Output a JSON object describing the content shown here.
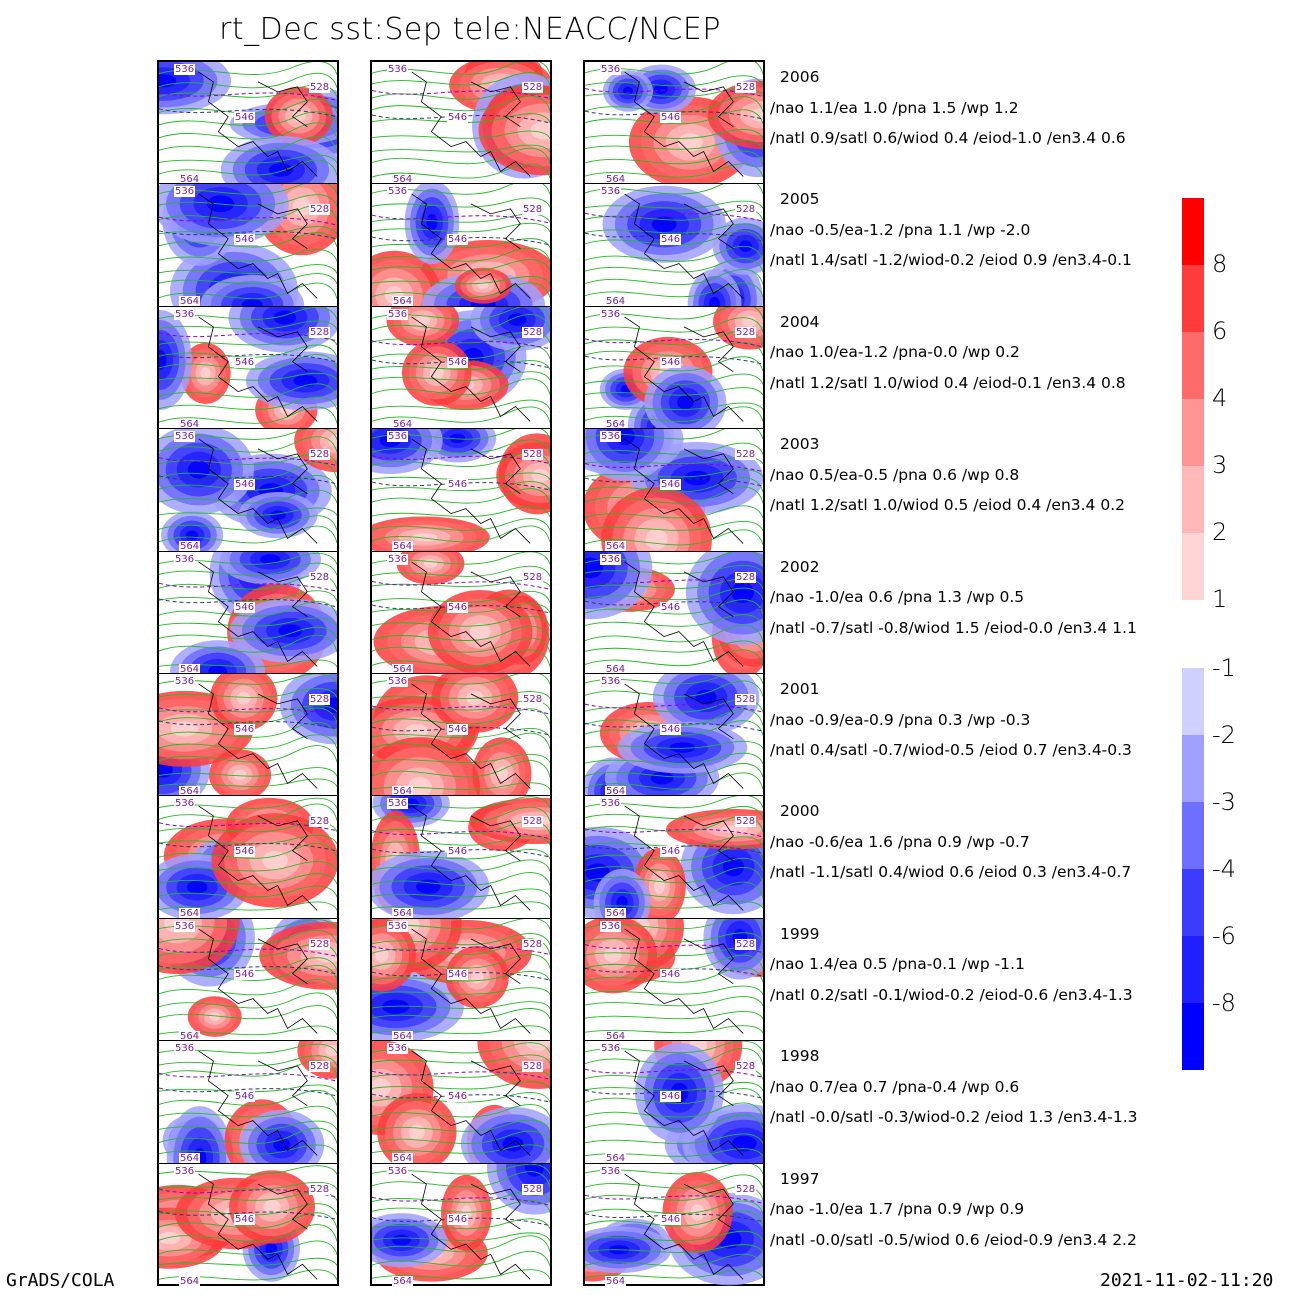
{
  "title": "rt_Dec  sst:Sep  tele:NEACC/NCEP",
  "footer": {
    "left": "GrADS/COLA",
    "right": "2021-11-02-11:20"
  },
  "legend_positive": [
    "8",
    "6",
    "4",
    "3",
    "2",
    "1"
  ],
  "legend_negative": [
    "-1",
    "-2",
    "-3",
    "-4",
    "-6",
    "-8"
  ],
  "colors": {
    "pos": [
      "#ff0000",
      "#ff3c3c",
      "#ff6a6a",
      "#ff9494",
      "#ffb8b8",
      "#ffd4d4"
    ],
    "neg": [
      "#d0d0ff",
      "#a0a0ff",
      "#6e6eff",
      "#3c3cff",
      "#2020ff",
      "#0000ff"
    ],
    "contour_green": "#22bb22",
    "contour_purple": "#8800cc",
    "contour_navy": "#2b3a6e"
  },
  "rows": [
    {
      "year": "2006",
      "line1": "/nao  1.1/ea 1.0 /pna 1.5 /wp  1.2",
      "line2": "/natl  0.9/satl  0.6/wiod 0.4 /eiod-1.0 /en3.4 0.6",
      "labels": [
        "536",
        "546",
        "528",
        "564"
      ]
    },
    {
      "year": "2005",
      "line1": "/nao -0.5/ea-1.2 /pna 1.1 /wp -2.0",
      "line2": "/natl  1.4/satl -1.2/wiod-0.2 /eiod 0.9 /en3.4-0.1",
      "labels": [
        "536",
        "546",
        "528",
        "564"
      ]
    },
    {
      "year": "2004",
      "line1": "/nao  1.0/ea-1.2 /pna-0.0 /wp  0.2",
      "line2": "/natl  1.2/satl  1.0/wiod 0.4 /eiod-0.1 /en3.4 0.8",
      "labels": [
        "536",
        "546",
        "528",
        "564"
      ]
    },
    {
      "year": "2003",
      "line1": "/nao  0.5/ea-0.5 /pna 0.6 /wp  0.8",
      "line2": "/natl  1.2/satl  1.0/wiod 0.5 /eiod 0.4 /en3.4 0.2",
      "labels": [
        "536",
        "546",
        "528",
        "564"
      ]
    },
    {
      "year": "2002",
      "line1": "/nao -1.0/ea 0.6 /pna 1.3 /wp  0.5",
      "line2": "/natl -0.7/satl -0.8/wiod 1.5 /eiod-0.0 /en3.4 1.1",
      "labels": [
        "536",
        "546",
        "528",
        "564"
      ]
    },
    {
      "year": "2001",
      "line1": "/nao -0.9/ea-0.9 /pna 0.3 /wp -0.3",
      "line2": "/natl  0.4/satl -0.7/wiod-0.5 /eiod 0.7 /en3.4-0.3",
      "labels": [
        "536",
        "546",
        "528",
        "564"
      ]
    },
    {
      "year": "2000",
      "line1": "/nao -0.6/ea 1.6 /pna 0.9 /wp -0.7",
      "line2": "/natl -1.1/satl  0.4/wiod 0.6 /eiod 0.3 /en3.4-0.7",
      "labels": [
        "536",
        "546",
        "528",
        "564"
      ]
    },
    {
      "year": "1999",
      "line1": "/nao  1.4/ea 0.5 /pna-0.1 /wp -1.1",
      "line2": "/natl  0.2/satl -0.1/wiod-0.2 /eiod-0.6 /en3.4-1.3",
      "labels": [
        "536",
        "546",
        "528",
        "564"
      ]
    },
    {
      "year": "1998",
      "line1": "/nao  0.7/ea 0.7 /pna-0.4 /wp  0.6",
      "line2": "/natl -0.0/satl -0.3/wiod-0.2 /eiod 1.3 /en3.4-1.3",
      "labels": [
        "536",
        "546",
        "528",
        "564"
      ]
    },
    {
      "year": "1997",
      "line1": "/nao -1.0/ea 1.7 /pna 0.9 /wp  0.9",
      "line2": "/natl -0.0/satl -0.5/wiod 0.6 /eiod-0.9 /en3.4 2.2",
      "labels": [
        "536",
        "546",
        "528",
        "564"
      ]
    }
  ]
}
